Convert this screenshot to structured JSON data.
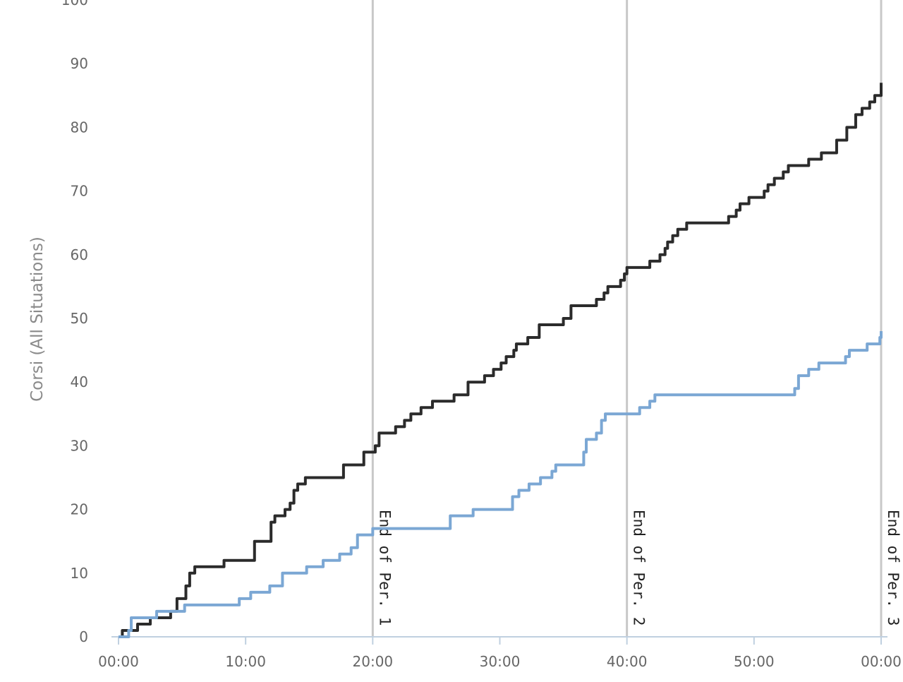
{
  "chart_data": {
    "type": "line",
    "title": "",
    "xlabel": "",
    "ylabel": "Corsi (All Situations)",
    "xlim": [
      0,
      60
    ],
    "ylim": [
      0,
      100
    ],
    "x_tick_values": [
      0,
      10,
      20,
      30,
      40,
      50,
      60
    ],
    "x_tick_labels": [
      "00:00",
      "10:00",
      "20:00",
      "30:00",
      "40:00",
      "50:00",
      "00:00"
    ],
    "y_tick_values": [
      0,
      10,
      20,
      30,
      40,
      50,
      60,
      70,
      80,
      90,
      100
    ],
    "y_tick_labels": [
      "0",
      "10",
      "20",
      "30",
      "40",
      "50",
      "60",
      "70",
      "80",
      "90",
      "100"
    ],
    "grid": false,
    "plot_lines": [
      {
        "x": 20,
        "label": "End of Per. 1"
      },
      {
        "x": 40,
        "label": "End of Per. 2"
      },
      {
        "x": 60,
        "label": "End of Per. 3"
      }
    ],
    "series": [
      {
        "color": "#2b2b2b",
        "step": true,
        "x": [
          0.0,
          0.3,
          1.5,
          2.5,
          4.1,
          4.6,
          5.3,
          5.6,
          6.0,
          8.3,
          10.7,
          12.0,
          12.3,
          13.1,
          13.5,
          13.8,
          14.1,
          14.7,
          17.7,
          19.3,
          20.2,
          20.5,
          21.8,
          22.5,
          23.0,
          23.8,
          24.7,
          26.4,
          27.5,
          28.8,
          29.5,
          30.1,
          30.5,
          31.1,
          31.3,
          32.2,
          33.1,
          35.0,
          35.6,
          37.6,
          38.2,
          38.5,
          39.5,
          39.8,
          40.0,
          41.8,
          42.6,
          43.0,
          43.2,
          43.6,
          44.0,
          44.7,
          48.0,
          48.6,
          48.9,
          49.6,
          50.8,
          51.1,
          51.6,
          52.3,
          52.7,
          54.3,
          55.3,
          56.5,
          57.3,
          58.0,
          58.5,
          59.1,
          59.5,
          60.0
        ],
        "y": [
          0,
          1,
          2,
          3,
          4,
          6,
          8,
          10,
          11,
          12,
          15,
          18,
          19,
          20,
          21,
          23,
          24,
          25,
          27,
          29,
          30,
          32,
          33,
          34,
          35,
          36,
          37,
          38,
          40,
          41,
          42,
          43,
          44,
          45,
          46,
          47,
          49,
          50,
          52,
          53,
          54,
          55,
          56,
          57,
          58,
          59,
          60,
          61,
          62,
          63,
          64,
          65,
          66,
          67,
          68,
          69,
          70,
          71,
          72,
          73,
          74,
          75,
          76,
          78,
          80,
          82,
          83,
          84,
          85,
          87
        ]
      },
      {
        "color": "#7ba7d4",
        "step": true,
        "x": [
          0.0,
          0.8,
          1.0,
          3.0,
          5.2,
          9.5,
          10.4,
          11.9,
          12.9,
          14.8,
          16.1,
          17.4,
          18.3,
          18.8,
          20.0,
          26.1,
          27.9,
          31.0,
          31.5,
          32.3,
          33.2,
          34.1,
          34.4,
          36.6,
          36.8,
          37.6,
          38.0,
          38.3,
          40.0,
          41.0,
          41.8,
          42.2,
          53.2,
          53.5,
          54.3,
          55.1,
          55.7,
          57.2,
          57.5,
          58.9,
          59.9,
          60.0
        ],
        "y": [
          0,
          1,
          3,
          4,
          5,
          6,
          7,
          8,
          10,
          11,
          12,
          13,
          14,
          16,
          17,
          19,
          20,
          22,
          23,
          24,
          25,
          26,
          27,
          29,
          31,
          32,
          34,
          35,
          35,
          36,
          37,
          38,
          39,
          41,
          42,
          43,
          43,
          44,
          45,
          46,
          47,
          48
        ]
      }
    ]
  }
}
